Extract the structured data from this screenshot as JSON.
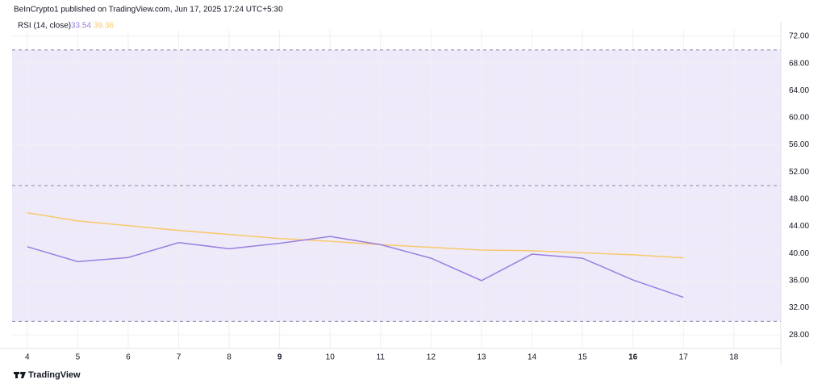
{
  "header": "BeInCrypto1 published on TradingView.com, Jun 17, 2025 17:24 UTC+5:30",
  "footer": "TradingView",
  "chart_data": {
    "type": "line",
    "title": "RSI (14, close)",
    "x": [
      4,
      5,
      6,
      7,
      8,
      9,
      10,
      11,
      12,
      13,
      14,
      15,
      16,
      17
    ],
    "series": [
      {
        "name": "RSI (14, close)",
        "color": "#9a7fe0",
        "values": [
          41.0,
          38.8,
          39.4,
          41.6,
          40.7,
          41.5,
          42.5,
          41.3,
          39.3,
          36.0,
          39.9,
          39.3,
          36.1,
          33.54
        ]
      },
      {
        "color": "#f7c96b",
        "values": [
          46.0,
          44.8,
          44.1,
          43.4,
          42.8,
          42.2,
          41.8,
          41.3,
          40.9,
          40.5,
          40.4,
          40.1,
          39.8,
          39.36
        ]
      }
    ],
    "xlim": [
      3.7,
      18.93
    ],
    "xticks": [
      4,
      5,
      6,
      7,
      8,
      9,
      10,
      11,
      12,
      13,
      14,
      15,
      16,
      17,
      18
    ],
    "bold_xticks": [
      9,
      16
    ],
    "ylim": [
      26,
      72.95
    ],
    "yticks": [
      {
        "value": 28,
        "label": "28.00"
      },
      {
        "value": 32,
        "label": "32.00"
      },
      {
        "value": 36,
        "label": "36.00"
      },
      {
        "value": 40,
        "label": "40.00"
      },
      {
        "value": 44,
        "label": "44.00"
      },
      {
        "value": 48,
        "label": "48.00"
      },
      {
        "value": 52,
        "label": "52.00"
      },
      {
        "value": 56,
        "label": "56.00"
      },
      {
        "value": 60,
        "label": "60.00"
      },
      {
        "value": 64,
        "label": "64.00"
      },
      {
        "value": 68,
        "label": "68.00"
      },
      {
        "value": 72,
        "label": "72.00"
      }
    ],
    "band": [
      30,
      70
    ],
    "midline": 50,
    "band_color": "#efeaf9",
    "grid": true
  }
}
